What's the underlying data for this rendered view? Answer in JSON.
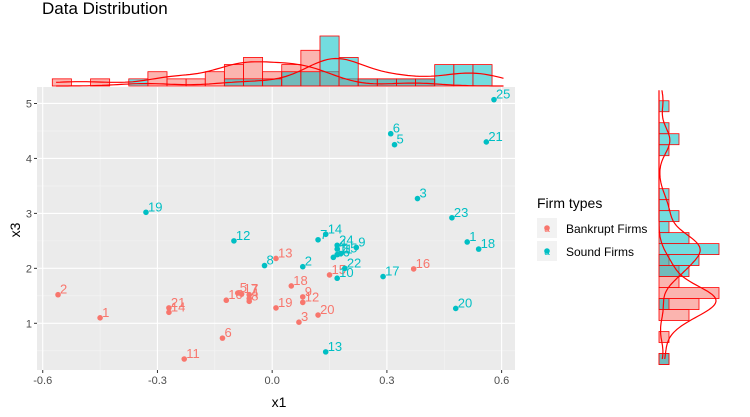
{
  "chart_data": {
    "type": "scatter",
    "title": "Data Distribution",
    "xlabel": "x1",
    "ylabel": "x3",
    "xlim": [
      -0.615,
      0.635
    ],
    "ylim": [
      0.15,
      5.3
    ],
    "x_ticks": [
      -0.6,
      -0.3,
      0.0,
      0.3,
      0.6
    ],
    "x_tick_labels": [
      "-0.6",
      "-0.3",
      "0.0",
      "0.3",
      "0.6"
    ],
    "y_ticks": [
      1,
      2,
      3,
      4,
      5
    ],
    "y_tick_labels": [
      "1",
      "2",
      "3",
      "4",
      "5"
    ],
    "grid": true,
    "legend": {
      "title": "Firm types",
      "placement": "right",
      "entries": [
        "Bankrupt Firms",
        "Sound Firms"
      ]
    },
    "colors": {
      "Bankrupt Firms": "#F8766D",
      "Sound Firms": "#00BFC4",
      "marginal_outline": "#FF0000",
      "panel": "#EBEBEB"
    },
    "marginal_plots": "histogram with density curve on top (x1) and right (x3)",
    "series": [
      {
        "name": "Bankrupt Firms",
        "points": [
          {
            "label": "1",
            "x": -0.45,
            "y": 1.1
          },
          {
            "label": "2",
            "x": -0.56,
            "y": 1.52
          },
          {
            "label": "3",
            "x": 0.07,
            "y": 1.02
          },
          {
            "label": "4",
            "x": -0.06,
            "y": 1.45
          },
          {
            "label": "5",
            "x": -0.09,
            "y": 1.55
          },
          {
            "label": "6",
            "x": -0.13,
            "y": 0.73
          },
          {
            "label": "7",
            "x": -0.06,
            "y": 1.52
          },
          {
            "label": "8",
            "x": -0.06,
            "y": 1.4
          },
          {
            "label": "9",
            "x": 0.08,
            "y": 1.48
          },
          {
            "label": "10",
            "x": -0.12,
            "y": 1.42
          },
          {
            "label": "11",
            "x": -0.23,
            "y": 0.35
          },
          {
            "label": "12",
            "x": 0.08,
            "y": 1.38
          },
          {
            "label": "13",
            "x": 0.01,
            "y": 2.18
          },
          {
            "label": "14",
            "x": -0.27,
            "y": 1.2
          },
          {
            "label": "15",
            "x": 0.15,
            "y": 1.88
          },
          {
            "label": "16",
            "x": 0.37,
            "y": 1.99
          },
          {
            "label": "17",
            "x": -0.08,
            "y": 1.53
          },
          {
            "label": "18",
            "x": 0.05,
            "y": 1.68
          },
          {
            "label": "19",
            "x": 0.01,
            "y": 1.28
          },
          {
            "label": "20",
            "x": 0.12,
            "y": 1.15
          },
          {
            "label": "21",
            "x": -0.27,
            "y": 1.28
          }
        ]
      },
      {
        "name": "Sound Firms",
        "points": [
          {
            "label": "1",
            "x": 0.51,
            "y": 2.48
          },
          {
            "label": "2",
            "x": 0.08,
            "y": 2.03
          },
          {
            "label": "3",
            "x": 0.38,
            "y": 3.27
          },
          {
            "label": "4",
            "x": 0.17,
            "y": 2.35
          },
          {
            "label": "5",
            "x": 0.32,
            "y": 4.25
          },
          {
            "label": "6",
            "x": 0.31,
            "y": 4.45
          },
          {
            "label": "7",
            "x": 0.12,
            "y": 2.52
          },
          {
            "label": "8",
            "x": -0.02,
            "y": 2.05
          },
          {
            "label": "9",
            "x": 0.22,
            "y": 2.38
          },
          {
            "label": "10",
            "x": 0.17,
            "y": 1.82
          },
          {
            "label": "11",
            "x": 0.17,
            "y": 2.25
          },
          {
            "label": "12",
            "x": -0.1,
            "y": 2.5
          },
          {
            "label": "13",
            "x": 0.14,
            "y": 0.48
          },
          {
            "label": "14",
            "x": 0.14,
            "y": 2.62
          },
          {
            "label": "15",
            "x": 0.18,
            "y": 2.27
          },
          {
            "label": "16",
            "x": 0.16,
            "y": 2.2
          },
          {
            "label": "17",
            "x": 0.29,
            "y": 1.85
          },
          {
            "label": "18",
            "x": 0.54,
            "y": 2.35
          },
          {
            "label": "19",
            "x": -0.33,
            "y": 3.02
          },
          {
            "label": "20",
            "x": 0.48,
            "y": 1.27
          },
          {
            "label": "21",
            "x": 0.56,
            "y": 4.3
          },
          {
            "label": "22",
            "x": 0.19,
            "y": 2.0
          },
          {
            "label": "23",
            "x": 0.47,
            "y": 2.92
          },
          {
            "label": "24",
            "x": 0.17,
            "y": 2.42
          },
          {
            "label": "25",
            "x": 0.58,
            "y": 5.07
          }
        ]
      }
    ],
    "top_marginal": {
      "variable": "x1",
      "bin_centers": [
        -0.55,
        -0.5,
        -0.45,
        -0.4,
        -0.35,
        -0.3,
        -0.25,
        -0.2,
        -0.15,
        -0.1,
        -0.05,
        0.0,
        0.05,
        0.1,
        0.15,
        0.2,
        0.25,
        0.3,
        0.35,
        0.4,
        0.45,
        0.5,
        0.55
      ],
      "Bankrupt Firms": [
        1,
        0,
        1,
        0,
        0,
        2,
        1,
        1,
        2,
        3,
        4,
        2,
        3,
        5,
        2,
        1,
        1,
        1,
        1,
        1,
        0,
        0,
        0
      ],
      "Sound Firms": [
        0,
        0,
        0,
        0,
        1,
        0,
        0,
        0,
        0,
        1,
        1,
        1,
        2,
        2,
        7,
        4,
        1,
        1,
        1,
        1,
        3,
        3,
        3
      ]
    },
    "right_marginal": {
      "variable": "x3",
      "bin_centers": [
        0.35,
        0.55,
        0.75,
        0.95,
        1.15,
        1.35,
        1.55,
        1.75,
        1.95,
        2.15,
        2.35,
        2.55,
        2.75,
        2.95,
        3.15,
        3.35,
        3.55,
        3.75,
        3.95,
        4.15,
        4.35,
        4.55,
        4.75,
        4.95
      ],
      "Bankrupt Firms": [
        1,
        0,
        1,
        0,
        3,
        4,
        6,
        2,
        2,
        1,
        0,
        0,
        0,
        0,
        0,
        0,
        0,
        0,
        0,
        0,
        0,
        0,
        0,
        0
      ],
      "Sound Firms": [
        1,
        0,
        0,
        0,
        0,
        1,
        0,
        0,
        3,
        4,
        6,
        3,
        1,
        2,
        1,
        1,
        0,
        0,
        0,
        1,
        2,
        1,
        0,
        1
      ]
    }
  }
}
